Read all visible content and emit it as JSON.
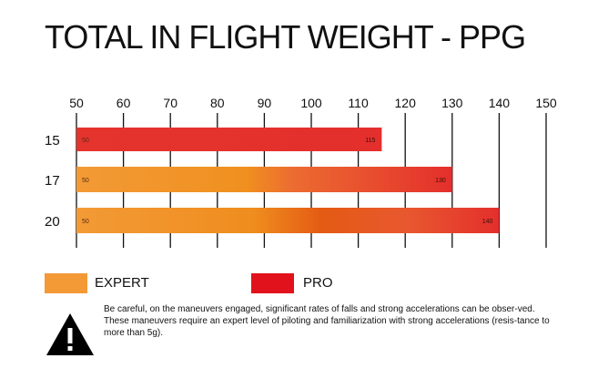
{
  "chart_data": {
    "type": "bar",
    "title": "TOTAL IN FLIGHT WEIGHT - PPG",
    "x_ticks": [
      50,
      60,
      70,
      80,
      90,
      100,
      110,
      120,
      130,
      140,
      150
    ],
    "xlim": [
      50,
      150
    ],
    "categories": [
      "15",
      "17",
      "20"
    ],
    "bars": [
      {
        "category": "15",
        "start": 50,
        "end": 115,
        "start_label": "50",
        "end_label": "115",
        "class": "PRO"
      },
      {
        "category": "17",
        "start": 50,
        "end": 130,
        "start_label": "50",
        "end_label": "130",
        "class": "EXPERT to PRO"
      },
      {
        "category": "20",
        "start": 50,
        "end": 140,
        "start_label": "50",
        "end_label": "140",
        "class": "EXPERT to PRO"
      }
    ],
    "legend": [
      {
        "label": "EXPERT",
        "color": "#f39a36"
      },
      {
        "label": "PRO",
        "color": "#e2121c"
      }
    ],
    "grid": "vertical"
  },
  "colors": {
    "expert": "#f39a36",
    "expert_mid": "#ef8a1c",
    "orange_deep": "#e35a17",
    "pro_light": "#ec5b3d",
    "pro": "#e42f2c",
    "pro_legend": "#e2121c"
  },
  "warning": {
    "icon": "warning-triangle-icon",
    "line1": "Be careful, on the maneuvers engaged, significant rates of falls and strong accelerations can be obser-ved.",
    "line2": "These maneuvers require an expert level of piloting and familiarization with strong accelerations (resis-tance to more than 5g)."
  }
}
